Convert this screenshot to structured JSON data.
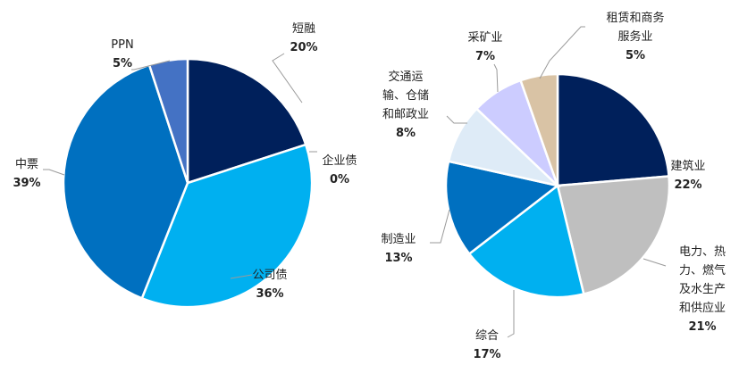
{
  "chart_data": [
    {
      "type": "pie",
      "slices": [
        {
          "label": "短融",
          "value": 20,
          "value_label": "20%",
          "color": "#00205b"
        },
        {
          "label": "企业债",
          "value": 0,
          "value_label": "0%",
          "color": "#1a3a7a"
        },
        {
          "label": "公司债",
          "value": 36,
          "value_label": "36%",
          "color": "#00b0f0"
        },
        {
          "label": "中票",
          "value": 39,
          "value_label": "39%",
          "color": "#0070c0"
        },
        {
          "label": "PPN",
          "value": 5,
          "value_label": "5%",
          "color": "#4472c4"
        }
      ]
    },
    {
      "type": "pie",
      "slices": [
        {
          "label": "建筑业",
          "value": 22,
          "value_label": "22%",
          "color": "#00205b"
        },
        {
          "label": "电力、热力、燃气及水生产和供应业",
          "label_lines": [
            "电力、热",
            "力、燃气",
            "及水生产",
            "和供应业"
          ],
          "value": 21,
          "value_label": "21%",
          "color": "#bfbfbf"
        },
        {
          "label": "综合",
          "value": 17,
          "value_label": "17%",
          "color": "#00b0f0"
        },
        {
          "label": "制造业",
          "value": 13,
          "value_label": "13%",
          "color": "#0070c0"
        },
        {
          "label": "交通运输、仓储和邮政业",
          "label_lines": [
            "交通运",
            "输、仓储",
            "和邮政业"
          ],
          "value": 8,
          "value_label": "8%",
          "color": "#deebf7"
        },
        {
          "label": "采矿业",
          "value": 7,
          "value_label": "7%",
          "color": "#ccccff"
        },
        {
          "label": "租赁和商务服务业",
          "label_lines": [
            "租赁和商务",
            "服务业"
          ],
          "value": 5,
          "value_label": "5%",
          "color": "#d9c3a5"
        }
      ]
    }
  ]
}
